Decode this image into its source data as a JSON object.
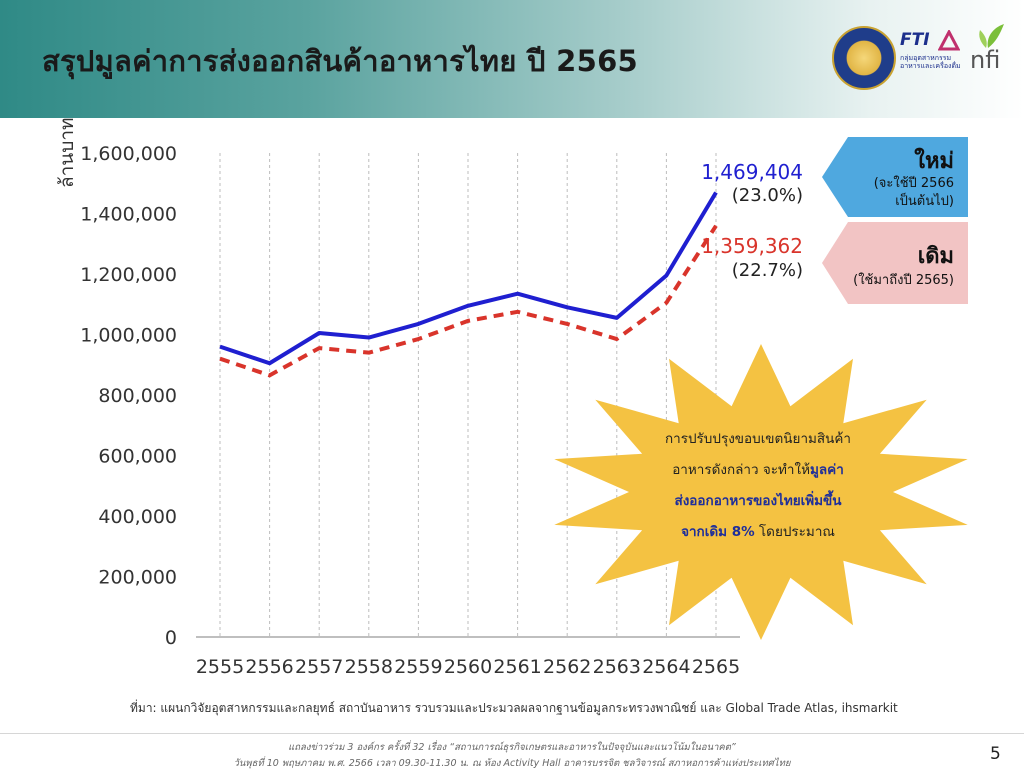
{
  "header": {
    "title": "สรุปมูลค่าการส่งออกสินค้าอาหารไทย ปี 2565",
    "logos": {
      "seal": "ministry-seal",
      "fti_brand": "FTI",
      "fti_sub": "กลุ่มอุตสาหกรรม อาหารและเครื่องดื่ม",
      "nfi_brand": "nfi"
    }
  },
  "chart_data": {
    "type": "line",
    "title": "",
    "xlabel": "",
    "ylabel": "ล้านบาท",
    "categories": [
      "2555",
      "2556",
      "2557",
      "2558",
      "2559",
      "2560",
      "2561",
      "2562",
      "2563",
      "2564",
      "2565"
    ],
    "ylim": [
      0,
      1600000
    ],
    "yticks": [
      "0",
      "200,000",
      "400,000",
      "600,000",
      "800,000",
      "1,000,000",
      "1,200,000",
      "1,400,000",
      "1,600,000"
    ],
    "grid": "vertical dashed",
    "series": [
      {
        "name": "ใหม่",
        "color": "#1f1fd0",
        "style": "solid",
        "values": [
          960000,
          905000,
          1005000,
          990000,
          1035000,
          1095000,
          1135000,
          1090000,
          1055000,
          1195000,
          1469404
        ]
      },
      {
        "name": "เดิม",
        "color": "#d9342b",
        "style": "dashed",
        "values": [
          920000,
          865000,
          955000,
          940000,
          985000,
          1045000,
          1075000,
          1035000,
          985000,
          1105000,
          1359362
        ]
      }
    ],
    "annotations": {
      "new_value": "1,469,404",
      "new_pct": "(23.0%)",
      "old_value": "1,359,362",
      "old_pct": "(22.7%)"
    }
  },
  "tags": {
    "new": {
      "title": "ใหม่",
      "sub1": "(จะใช้ปี 2566",
      "sub2": "เป็นต้นไป)",
      "color": "#4fa8df"
    },
    "old": {
      "title": "เดิม",
      "sub1": "(ใช้มาถึงปี 2565)",
      "color": "#f2c4c4"
    }
  },
  "burst": {
    "color": "#f4c242",
    "line1": "การปรับปรุงขอบเขตนิยามสินค้า",
    "line2a": "อาหารดังกล่าว จะทำให้",
    "line2b": "มูลค่า",
    "line3": "ส่งออกอาหารของไทยเพิ่มขึ้น",
    "line4a": "จากเดิม 8%",
    "line4b": " โดยประมาณ"
  },
  "source": "ที่มา: แผนกวิจัยอุตสาหกรรมและกลยุทธ์  สถาบันอาหาร รวบรวมและประมวลผลจากฐานข้อมูลกระทรวงพาณิชย์ และ Global Trade Atlas, ihsmarkit",
  "footer": {
    "line1": "แถลงข่าวร่วม 3 องค์กร ครั้งที่ 32 เรื่อง “สถานการณ์ธุรกิจเกษตรและอาหารในปัจจุบันและแนวโน้มในอนาคต”",
    "line2": "วันพุธที่ 10 พฤษภาคม พ.ศ. 2566 เวลา 09.30-11.30 น. ณ ห้อง Activity Hall อาคารบรรจิต ชลวิจารณ์ สภาหอการค้าแห่งประเทศไทย",
    "page": "5"
  }
}
